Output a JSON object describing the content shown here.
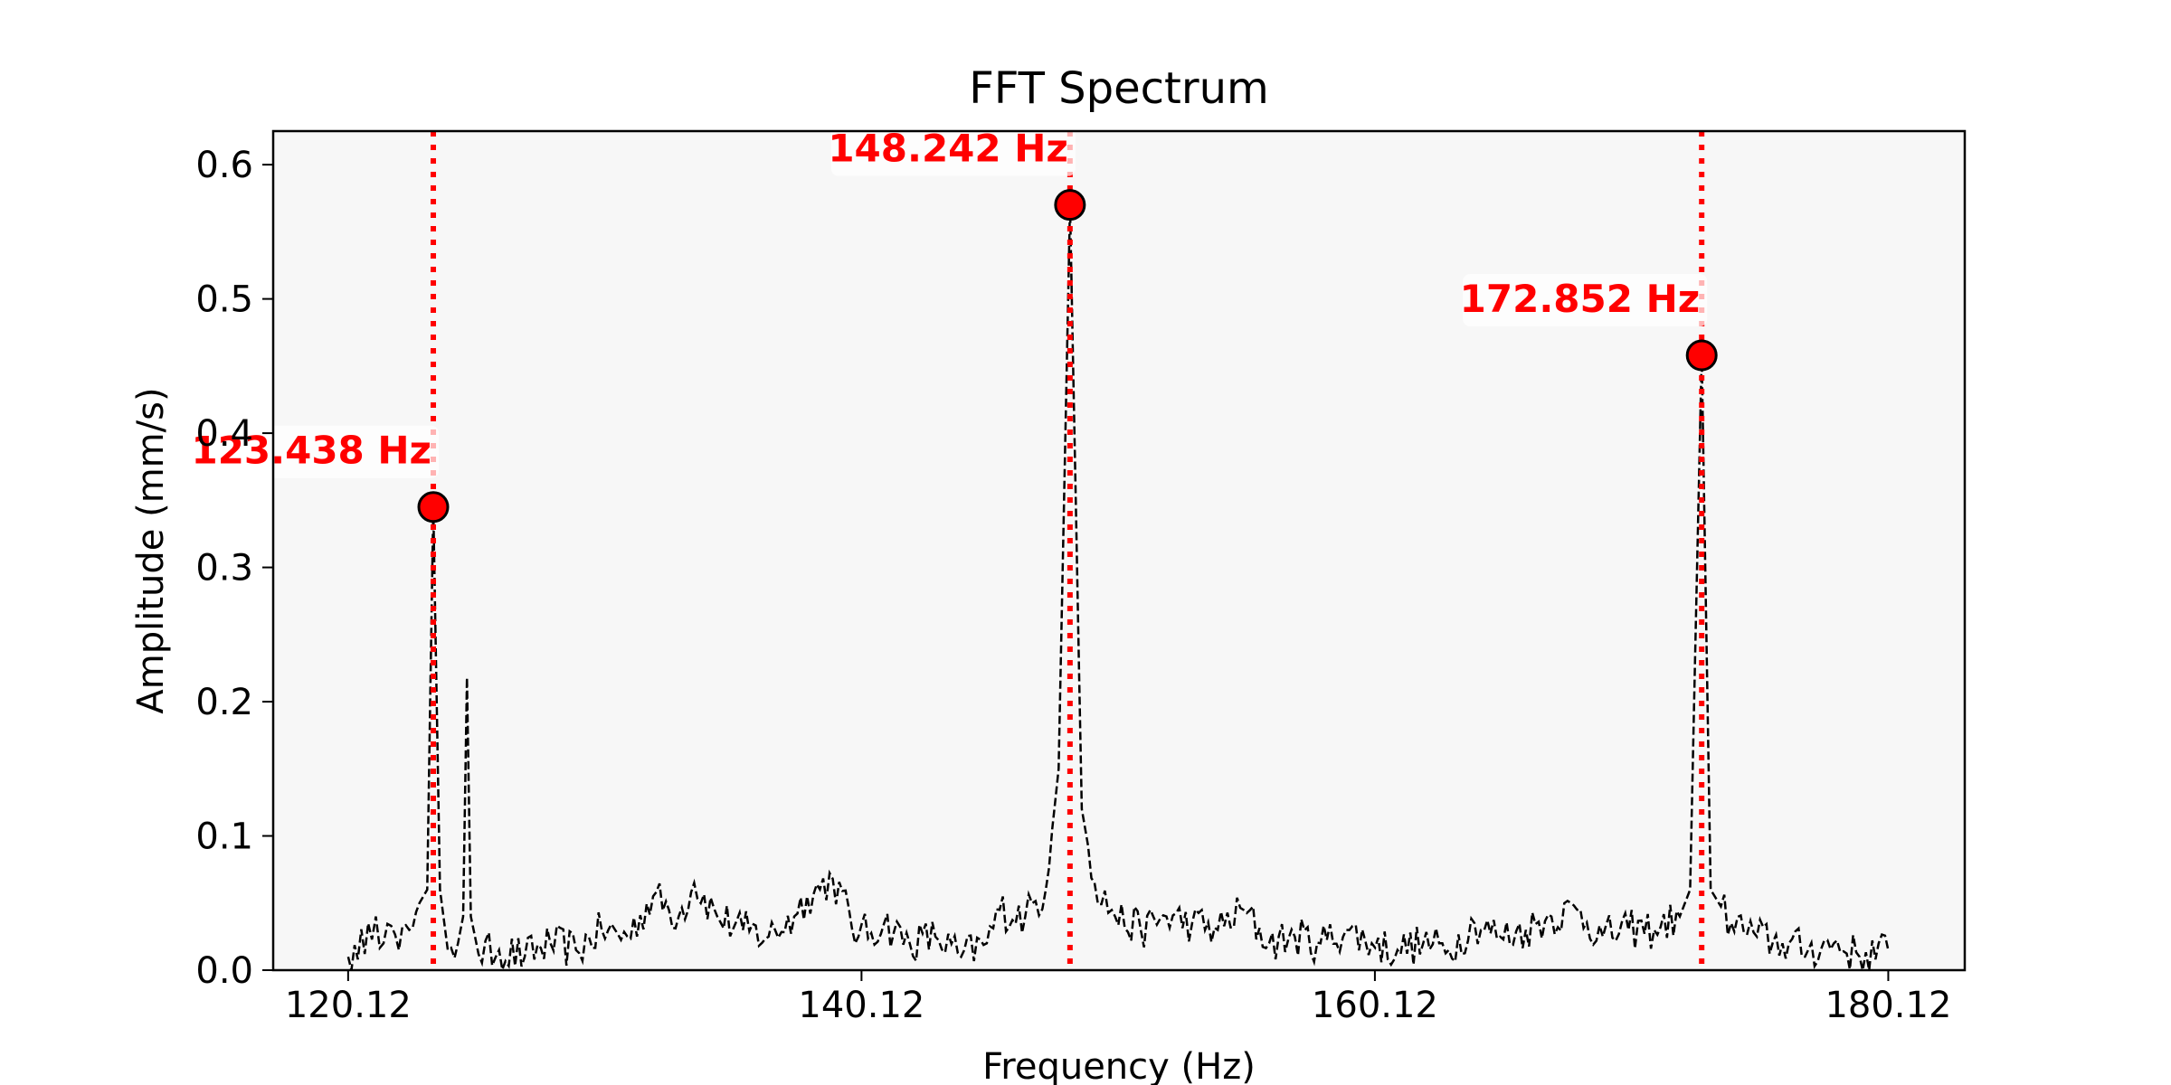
{
  "chart_data": {
    "type": "line",
    "title": "FFT Spectrum",
    "xlabel": "Frequency (Hz)",
    "ylabel": "Amplitude (mm/s)",
    "xlim": [
      117.2,
      183.1
    ],
    "ylim": [
      0.0,
      0.625
    ],
    "x_ticks": [
      120.12,
      140.12,
      160.12,
      180.12
    ],
    "x_tick_labels": [
      "120.12",
      "140.12",
      "160.12",
      "180.12"
    ],
    "y_ticks": [
      0.0,
      0.1,
      0.2,
      0.3,
      0.4,
      0.5,
      0.6
    ],
    "y_tick_labels": [
      "0.0",
      "0.1",
      "0.2",
      "0.3",
      "0.4",
      "0.5",
      "0.6"
    ],
    "grid": false,
    "legend": "none",
    "colors": {
      "spectrum": "#000000",
      "peak": "#ff0000",
      "annotation": "#ff0000",
      "plot_background": "#f7f7f7"
    },
    "series": [
      {
        "style": "dashed",
        "x_range": [
          120.12,
          180.12
        ],
        "noise_floor_approx": 0.02,
        "points": [
          [
            120.12,
            0.01
          ],
          [
            120.5,
            0.008
          ],
          [
            120.9,
            0.035
          ],
          [
            121.2,
            0.04
          ],
          [
            121.5,
            0.02
          ],
          [
            121.8,
            0.033
          ],
          [
            122.1,
            0.015
          ],
          [
            122.5,
            0.03
          ],
          [
            122.9,
            0.05
          ],
          [
            123.2,
            0.06
          ],
          [
            123.438,
            0.345
          ],
          [
            123.7,
            0.06
          ],
          [
            124.0,
            0.015
          ],
          [
            124.4,
            0.02
          ],
          [
            124.6,
            0.04
          ],
          [
            124.75,
            0.218
          ],
          [
            124.9,
            0.04
          ],
          [
            125.2,
            0.012
          ],
          [
            126.0,
            0.015
          ],
          [
            127.0,
            0.01
          ],
          [
            128.0,
            0.02
          ],
          [
            129.0,
            0.015
          ],
          [
            130.0,
            0.03
          ],
          [
            131.0,
            0.025
          ],
          [
            132.0,
            0.055
          ],
          [
            133.0,
            0.04
          ],
          [
            133.6,
            0.065
          ],
          [
            134.5,
            0.04
          ],
          [
            135.5,
            0.03
          ],
          [
            136.5,
            0.025
          ],
          [
            137.5,
            0.04
          ],
          [
            138.0,
            0.055
          ],
          [
            139.0,
            0.068
          ],
          [
            140.0,
            0.025
          ],
          [
            141.0,
            0.035
          ],
          [
            142.0,
            0.02
          ],
          [
            143.0,
            0.025
          ],
          [
            144.0,
            0.01
          ],
          [
            145.0,
            0.02
          ],
          [
            145.5,
            0.045
          ],
          [
            146.5,
            0.04
          ],
          [
            147.3,
            0.06
          ],
          [
            147.8,
            0.15
          ],
          [
            148.242,
            0.57
          ],
          [
            148.7,
            0.12
          ],
          [
            149.2,
            0.065
          ],
          [
            150.0,
            0.04
          ],
          [
            151.0,
            0.03
          ],
          [
            152.0,
            0.04
          ],
          [
            153.0,
            0.035
          ],
          [
            154.0,
            0.03
          ],
          [
            155.0,
            0.045
          ],
          [
            156.0,
            0.02
          ],
          [
            157.0,
            0.025
          ],
          [
            158.0,
            0.02
          ],
          [
            159.0,
            0.03
          ],
          [
            160.0,
            0.02
          ],
          [
            161.0,
            0.015
          ],
          [
            162.0,
            0.02
          ],
          [
            163.0,
            0.015
          ],
          [
            164.0,
            0.035
          ],
          [
            165.0,
            0.025
          ],
          [
            166.0,
            0.03
          ],
          [
            167.0,
            0.04
          ],
          [
            168.0,
            0.045
          ],
          [
            169.0,
            0.025
          ],
          [
            170.0,
            0.03
          ],
          [
            171.0,
            0.03
          ],
          [
            172.0,
            0.04
          ],
          [
            172.4,
            0.06
          ],
          [
            172.852,
            0.458
          ],
          [
            173.2,
            0.06
          ],
          [
            174.0,
            0.035
          ],
          [
            175.0,
            0.025
          ],
          [
            176.0,
            0.02
          ],
          [
            177.0,
            0.015
          ],
          [
            178.0,
            0.02
          ],
          [
            179.0,
            0.01
          ],
          [
            180.12,
            0.015
          ]
        ]
      }
    ],
    "peaks": [
      {
        "x": 123.438,
        "y": 0.345,
        "label": "123.438 Hz"
      },
      {
        "x": 148.242,
        "y": 0.57,
        "label": "148.242 Hz"
      },
      {
        "x": 172.852,
        "y": 0.458,
        "label": "172.852 Hz"
      }
    ]
  }
}
